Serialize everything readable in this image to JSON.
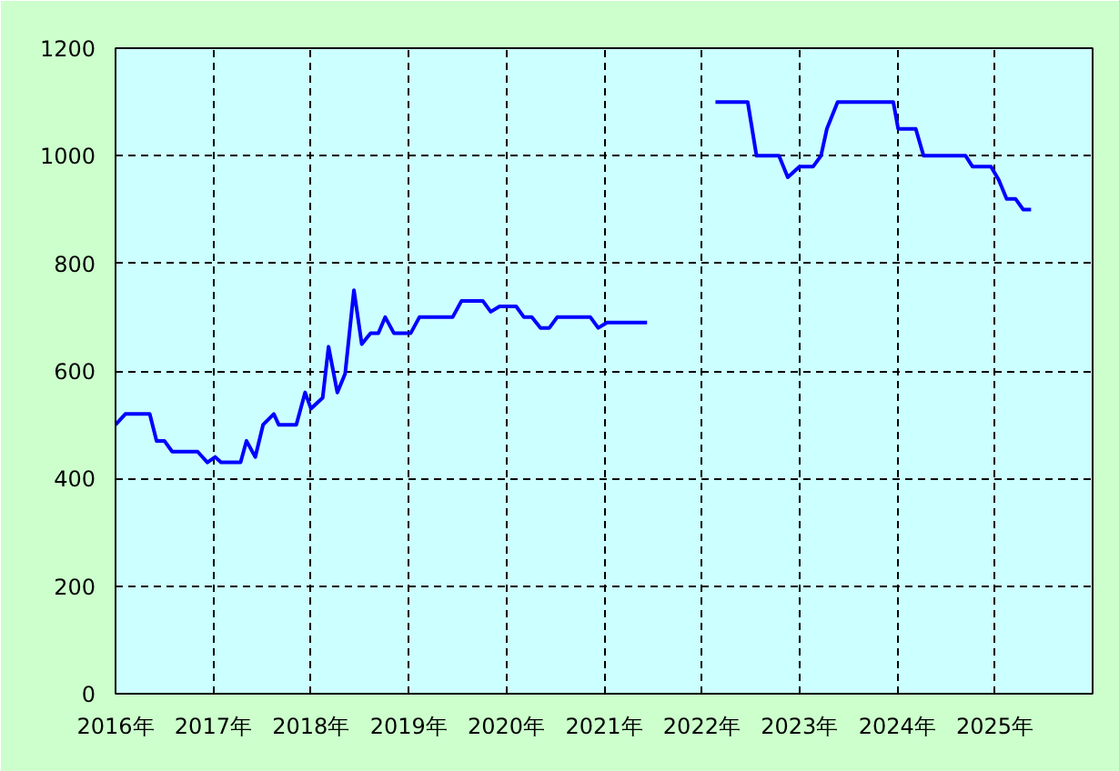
{
  "chart_data": {
    "type": "line",
    "x": [
      2016.0,
      2016.1,
      2016.35,
      2016.42,
      2016.5,
      2016.58,
      2016.84,
      2016.94,
      2017.02,
      2017.08,
      2017.28,
      2017.34,
      2017.43,
      2017.51,
      2017.62,
      2017.67,
      2017.85,
      2017.94,
      2018.0,
      2018.12,
      2018.18,
      2018.27,
      2018.35,
      2018.44,
      2018.52,
      2018.61,
      2018.69,
      2018.76,
      2018.85,
      2019.02,
      2019.11,
      2019.45,
      2019.54,
      2019.76,
      2019.84,
      2019.93,
      2020.1,
      2020.18,
      2020.26,
      2020.35,
      2020.44,
      2020.52,
      2020.86,
      2020.94,
      2021.03,
      2021.44,
      2021.8,
      2022.14,
      2022.47,
      2022.56,
      2022.79,
      2022.88,
      2023.0,
      2023.14,
      2023.22,
      2023.28,
      2023.39,
      2023.96,
      2024.01,
      2024.19,
      2024.27,
      2024.7,
      2024.77,
      2024.96,
      2025.04,
      2025.12,
      2025.21,
      2025.29,
      2025.37
    ],
    "series": [
      {
        "color": "#0000ff",
        "values": [
          500,
          520,
          520,
          470,
          470,
          450,
          450,
          430,
          440,
          430,
          430,
          470,
          440,
          500,
          520,
          500,
          500,
          560,
          530,
          550,
          645,
          560,
          595,
          750,
          650,
          670,
          670,
          700,
          670,
          670,
          700,
          700,
          730,
          730,
          710,
          720,
          720,
          700,
          700,
          680,
          680,
          700,
          700,
          680,
          690,
          690,
          null,
          1100,
          1100,
          1000,
          1000,
          960,
          980,
          980,
          1000,
          1050,
          1100,
          1100,
          1050,
          1050,
          1000,
          1000,
          980,
          980,
          955,
          920,
          920,
          900,
          900
        ]
      }
    ],
    "xlim": [
      2016,
      2026
    ],
    "ylim": [
      0,
      1200
    ],
    "xticks": [
      {
        "value": 2016,
        "label": "2016年"
      },
      {
        "value": 2017,
        "label": "2017年"
      },
      {
        "value": 2018,
        "label": "2018年"
      },
      {
        "value": 2019,
        "label": "2019年"
      },
      {
        "value": 2020,
        "label": "2020年"
      },
      {
        "value": 2021,
        "label": "2021年"
      },
      {
        "value": 2022,
        "label": "2022年"
      },
      {
        "value": 2023,
        "label": "2023年"
      },
      {
        "value": 2024,
        "label": "2024年"
      },
      {
        "value": 2025,
        "label": "2025年"
      }
    ],
    "yticks": [
      0,
      200,
      400,
      600,
      800,
      1000,
      1200
    ],
    "grid": true,
    "marker": "none",
    "line_style": "solid"
  }
}
